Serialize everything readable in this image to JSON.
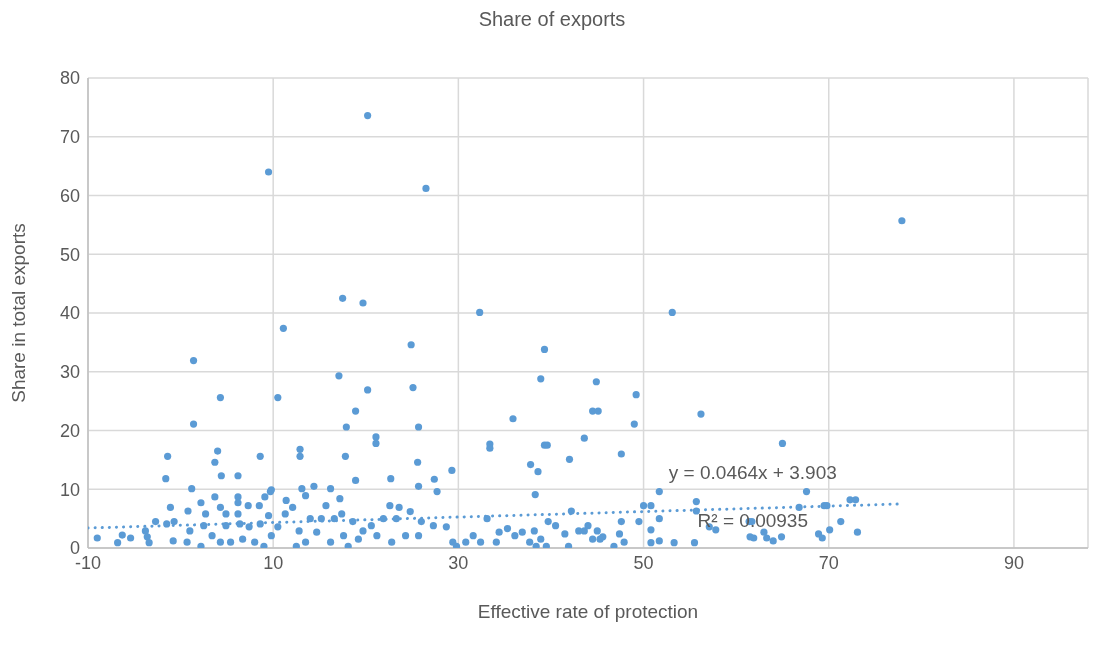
{
  "chart_data": {
    "type": "scatter",
    "title": "Share of exports",
    "xlabel": "Effective rate of protection",
    "ylabel": "Share in total exports",
    "xlim": [
      -10,
      98
    ],
    "xticks": [
      -10,
      10,
      30,
      50,
      70,
      90
    ],
    "ylim": [
      0,
      80
    ],
    "yticks": [
      0,
      10,
      20,
      30,
      40,
      50,
      60,
      70,
      80
    ],
    "grid": true,
    "annotations": [
      "y = 0.0464x + 3.903",
      "R² = 0.00935"
    ],
    "series": [
      {
        "color": "#5b9bd5",
        "marker": "circle",
        "x": [
          20.2,
          9.5,
          26.5,
          77.9,
          17.5,
          19.7,
          32.3,
          53.1,
          11.1,
          24.9,
          39.3,
          1.4,
          17.1,
          38.9,
          44.9,
          25.1,
          20.2,
          49.2,
          4.3,
          10.5,
          18.9,
          44.5,
          45.1,
          56.2,
          35.9,
          1.4,
          49.0,
          17.9,
          25.7,
          21.1,
          21.1,
          43.6,
          33.4,
          33.4,
          39.3,
          39.6,
          65.0,
          12.9,
          12.9,
          4.0,
          -1.4,
          8.6,
          17.8,
          47.6,
          42.0,
          3.7,
          25.6,
          37.8,
          38.6,
          29.3,
          -1.6,
          6.2,
          4.4,
          18.9,
          22.7,
          27.4,
          25.7,
          14.4,
          1.2,
          9.8,
          13.1,
          16.2,
          38.3,
          27.7,
          51.7,
          67.6,
          50.0,
          50.8,
          72.3,
          72.9,
          66.8,
          69.5,
          69.8,
          70.1,
          73.1,
          68.9,
          69.3,
          63.0,
          63.3,
          64.0,
          64.9,
          61.9,
          61.7,
          71.3,
          57.1,
          57.8,
          55.7,
          55.7,
          55.5,
          53.3,
          50.8,
          51.7,
          50.8,
          51.7,
          49.5,
          47.6,
          46.8,
          47.9,
          47.4,
          61.5,
          61.4,
          -9.0,
          -6.8,
          -6.3,
          -5.4,
          -3.8,
          -3.6,
          -3.4,
          -2.7,
          -1.5,
          -1.1,
          -0.8,
          -0.7,
          0.7,
          0.8,
          1.0,
          2.2,
          2.2,
          2.7,
          2.5,
          3.4,
          3.7,
          4.3,
          4.3,
          4.9,
          4.9,
          5.4,
          6.2,
          6.2,
          6.2,
          6.4,
          6.7,
          7.3,
          7.4,
          8.0,
          8.5,
          8.6,
          9.0,
          9.1,
          9.5,
          9.7,
          9.8,
          10.5,
          11.3,
          11.4,
          12.1,
          12.5,
          12.8,
          13.5,
          13.5,
          14.0,
          14.7,
          15.2,
          15.7,
          16.2,
          16.6,
          17.2,
          17.4,
          17.6,
          18.1,
          18.6,
          19.2,
          19.7,
          20.6,
          21.2,
          21.9,
          22.6,
          22.8,
          23.3,
          23.6,
          24.3,
          24.8,
          25.7,
          26.0,
          27.3,
          28.7,
          29.4,
          29.8,
          30.8,
          31.6,
          32.4,
          33.1,
          34.1,
          34.4,
          35.3,
          36.1,
          36.9,
          37.7,
          38.4,
          38.2,
          38.9,
          39.5,
          39.7,
          40.5,
          41.5,
          41.9,
          42.2,
          43.0,
          43.6,
          44.0,
          44.5,
          45.0,
          45.3,
          45.6
        ],
        "values": [
          73.6,
          64.0,
          61.2,
          55.7,
          42.5,
          41.7,
          40.1,
          40.1,
          37.4,
          34.6,
          33.8,
          31.9,
          29.3,
          28.8,
          28.3,
          27.3,
          26.9,
          26.1,
          25.6,
          25.6,
          23.3,
          23.3,
          23.3,
          22.8,
          22.0,
          21.1,
          21.1,
          20.6,
          20.6,
          18.9,
          17.8,
          18.7,
          17.7,
          17.0,
          17.5,
          17.5,
          17.8,
          16.8,
          15.6,
          16.5,
          15.6,
          15.6,
          15.6,
          16.0,
          15.1,
          14.6,
          14.6,
          14.2,
          13.0,
          13.2,
          11.8,
          12.3,
          12.3,
          11.5,
          11.8,
          11.7,
          10.5,
          10.5,
          10.1,
          9.9,
          10.1,
          10.1,
          9.1,
          9.6,
          9.6,
          9.6,
          7.2,
          7.2,
          8.2,
          8.2,
          6.9,
          7.2,
          7.2,
          3.1,
          2.7,
          2.4,
          1.7,
          2.7,
          1.7,
          1.2,
          1.9,
          1.7,
          4.5,
          4.5,
          3.6,
          3.1,
          7.9,
          6.3,
          0.9,
          0.9,
          3.1,
          1.2,
          0.9,
          5.0,
          4.5,
          4.5,
          0.3,
          1.0,
          2.4,
          1.9,
          4.5,
          1.7,
          0.9,
          2.2,
          1.7,
          2.9,
          1.9,
          0.9,
          4.5,
          4.1,
          6.9,
          1.2,
          4.5,
          1.0,
          6.3,
          2.9,
          7.7,
          0.3,
          5.8,
          3.8,
          2.1,
          8.7,
          6.9,
          1.0,
          5.8,
          3.8,
          1.0,
          8.7,
          7.7,
          5.8,
          4.1,
          1.5,
          7.2,
          3.6,
          1.0,
          7.2,
          4.1,
          0.3,
          8.7,
          5.5,
          9.6,
          2.1,
          3.6,
          5.8,
          8.1,
          6.9,
          0.3,
          2.9,
          8.9,
          1.0,
          5.0,
          2.7,
          5.0,
          7.2,
          1.0,
          5.0,
          8.4,
          5.8,
          2.1,
          0.3,
          4.5,
          1.5,
          2.9,
          3.8,
          2.1,
          5.0,
          7.2,
          1.0,
          5.0,
          6.9,
          2.1,
          6.2,
          2.1,
          4.5,
          3.8,
          3.6,
          1.0,
          0.3,
          1.0,
          2.1,
          1.0,
          5.0,
          1.0,
          2.7,
          3.3,
          2.1,
          2.7,
          1.0,
          0.3,
          2.9,
          1.5,
          0.3,
          4.5,
          3.8,
          2.4,
          0.3,
          6.3,
          2.9,
          2.9,
          3.8,
          1.5,
          2.9,
          1.5,
          1.9
        ]
      },
      {
        "type": "line",
        "color": "#5b9bd5",
        "marker": "none",
        "line_style": "dotted",
        "x": [
          -10,
          78
        ],
        "values": [
          3.4,
          7.5
        ]
      }
    ]
  }
}
